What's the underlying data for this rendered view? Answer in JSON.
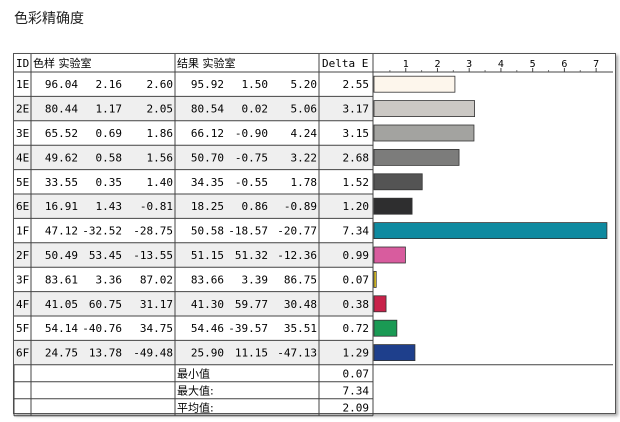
{
  "title": "色彩精确度",
  "headers": {
    "id": "ID",
    "ref": "色样 实验室",
    "result": "结果 实验室",
    "delta": "Delta E"
  },
  "axis_ticks": [
    "1",
    "2",
    "3",
    "4",
    "5",
    "6",
    "7"
  ],
  "rows": [
    {
      "id": "1E",
      "ref": [
        "96.04",
        "2.16",
        "2.60"
      ],
      "res": [
        "95.92",
        "1.50",
        "5.20"
      ],
      "de": "2.55",
      "color": "#fdf6ec"
    },
    {
      "id": "2E",
      "ref": [
        "80.44",
        "1.17",
        "2.05"
      ],
      "res": [
        "80.54",
        "0.02",
        "5.06"
      ],
      "de": "3.17",
      "color": "#cbc8c4"
    },
    {
      "id": "3E",
      "ref": [
        "65.52",
        "0.69",
        "1.86"
      ],
      "res": [
        "66.12",
        "-0.90",
        "4.24"
      ],
      "de": "3.15",
      "color": "#a3a3a0"
    },
    {
      "id": "4E",
      "ref": [
        "49.62",
        "0.58",
        "1.56"
      ],
      "res": [
        "50.70",
        "-0.75",
        "3.22"
      ],
      "de": "2.68",
      "color": "#7c7c7b"
    },
    {
      "id": "5E",
      "ref": [
        "33.55",
        "0.35",
        "1.40"
      ],
      "res": [
        "34.35",
        "-0.55",
        "1.78"
      ],
      "de": "1.52",
      "color": "#545454"
    },
    {
      "id": "6E",
      "ref": [
        "16.91",
        "1.43",
        "-0.81"
      ],
      "res": [
        "18.25",
        "0.86",
        "-0.89"
      ],
      "de": "1.20",
      "color": "#2e2e2f"
    },
    {
      "id": "1F",
      "ref": [
        "47.12",
        "-32.52",
        "-28.75"
      ],
      "res": [
        "50.58",
        "-18.57",
        "-20.77"
      ],
      "de": "7.34",
      "color": "#0f8aa0"
    },
    {
      "id": "2F",
      "ref": [
        "50.49",
        "53.45",
        "-13.55"
      ],
      "res": [
        "51.15",
        "51.32",
        "-12.36"
      ],
      "de": "0.99",
      "color": "#d85c9e"
    },
    {
      "id": "3F",
      "ref": [
        "83.61",
        "3.36",
        "87.02"
      ],
      "res": [
        "83.66",
        "3.39",
        "86.75"
      ],
      "de": "0.07",
      "color": "#f0d020"
    },
    {
      "id": "4F",
      "ref": [
        "41.05",
        "60.75",
        "31.17"
      ],
      "res": [
        "41.30",
        "59.77",
        "30.48"
      ],
      "de": "0.38",
      "color": "#c8224a"
    },
    {
      "id": "5F",
      "ref": [
        "54.14",
        "-40.76",
        "34.75"
      ],
      "res": [
        "54.46",
        "-39.57",
        "35.51"
      ],
      "de": "0.72",
      "color": "#1a9a54"
    },
    {
      "id": "6F",
      "ref": [
        "24.75",
        "13.78",
        "-49.48"
      ],
      "res": [
        "25.90",
        "11.15",
        "-47.13"
      ],
      "de": "1.29",
      "color": "#1e3f8c"
    }
  ],
  "summary": [
    {
      "label": "最小值",
      "value": "0.07"
    },
    {
      "label": "最大值:",
      "value": "7.34"
    },
    {
      "label": "平均值:",
      "value": "2.09"
    }
  ],
  "chart_data": {
    "type": "bar",
    "orientation": "horizontal",
    "categories": [
      "1E",
      "2E",
      "3E",
      "4E",
      "5E",
      "6E",
      "1F",
      "2F",
      "3F",
      "4F",
      "5F",
      "6F"
    ],
    "values": [
      2.55,
      3.17,
      3.15,
      2.68,
      1.52,
      1.2,
      7.34,
      0.99,
      0.07,
      0.38,
      0.72,
      1.29
    ],
    "xlim": [
      0,
      7.5
    ],
    "x_ticks": [
      1,
      2,
      3,
      4,
      5,
      6,
      7
    ],
    "title": "色彩精确度",
    "xlabel": "Delta E",
    "grid": false
  }
}
